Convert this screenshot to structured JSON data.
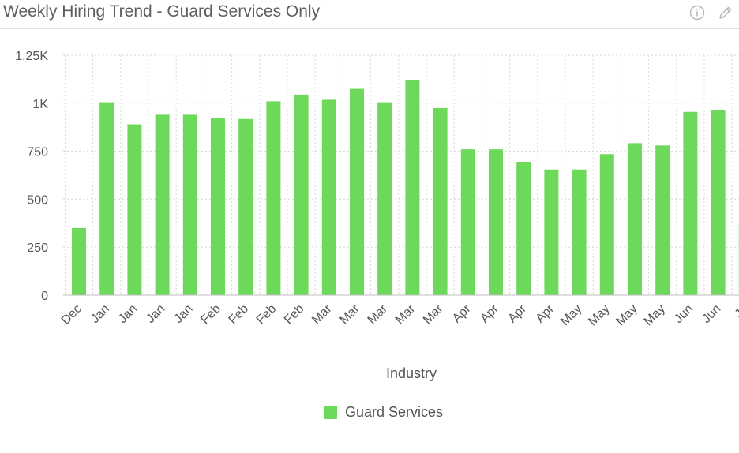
{
  "header": {
    "title": "Weekly Hiring Trend - Guard Services Only",
    "info_icon": "info-icon",
    "edit_icon": "pencil-icon"
  },
  "colors": {
    "bar": "#6cd95a",
    "grid": "#d8d8d8",
    "axis_text": "#555555"
  },
  "chart_data": {
    "type": "bar",
    "xlabel": "Industry",
    "ylabel": "",
    "ylim": [
      0,
      1250
    ],
    "yticks": [
      0,
      250,
      500,
      750,
      1000,
      1250
    ],
    "ytick_labels": [
      "0",
      "250",
      "500",
      "750",
      "1K",
      "1.25K"
    ],
    "grid": true,
    "legend_position": "bottom",
    "categories": [
      "Dec",
      "Jan",
      "Jan",
      "Jan",
      "Jan",
      "Feb",
      "Feb",
      "Feb",
      "Feb",
      "Mar",
      "Mar",
      "Mar",
      "Mar",
      "Mar",
      "Apr",
      "Apr",
      "Apr",
      "Apr",
      "May",
      "May",
      "May",
      "May",
      "Jun",
      "Jun",
      "Ju"
    ],
    "series": [
      {
        "name": "Guard Services",
        "values": [
          350,
          1005,
          890,
          940,
          940,
          925,
          918,
          1010,
          1045,
          1018,
          1075,
          1005,
          1120,
          975,
          760,
          760,
          695,
          655,
          655,
          735,
          792,
          780,
          955,
          965,
          370
        ]
      }
    ]
  }
}
